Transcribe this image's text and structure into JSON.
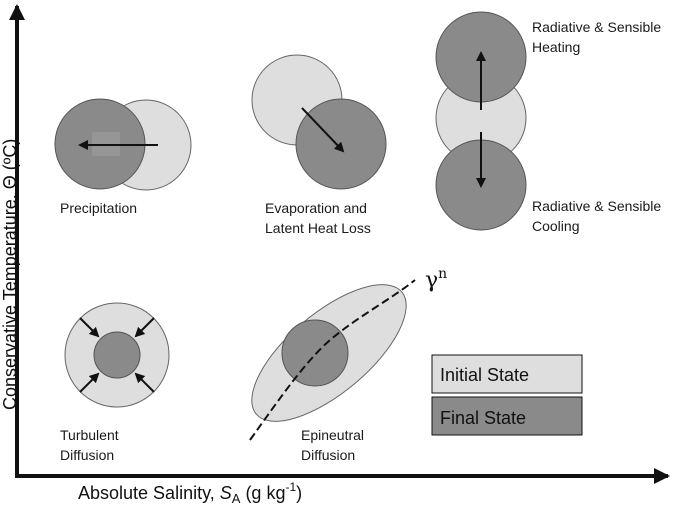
{
  "axes": {
    "x_label_pre": "Absolute Salinity, ",
    "x_label_var": "S",
    "x_label_sub": "A",
    "x_label_post": " (g kg",
    "x_label_sup": "-1",
    "x_label_end": ")",
    "y_label": "Conservative Temperature, Θ (ºC)"
  },
  "processes": {
    "precipitation": "Precipitation",
    "evaporation_line1": "Evaporation and",
    "evaporation_line2": "Latent Heat Loss",
    "heating_line1": "Radiative & Sensible",
    "heating_line2": "Heating",
    "cooling_line1": "Radiative & Sensible",
    "cooling_line2": "Cooling",
    "turbulent_line1": "Turbulent",
    "turbulent_line2": "Diffusion",
    "epineutral_line1": "Epineutral",
    "epineutral_line2": "Diffusion",
    "gamma_symbol": "γ",
    "gamma_sup": "n"
  },
  "legend": {
    "initial": "Initial State",
    "final": "Final State"
  },
  "colors": {
    "initial_fill": "#dedede",
    "final_fill": "#8a8a8a",
    "stroke": "#555555",
    "arrow": "#111111"
  }
}
